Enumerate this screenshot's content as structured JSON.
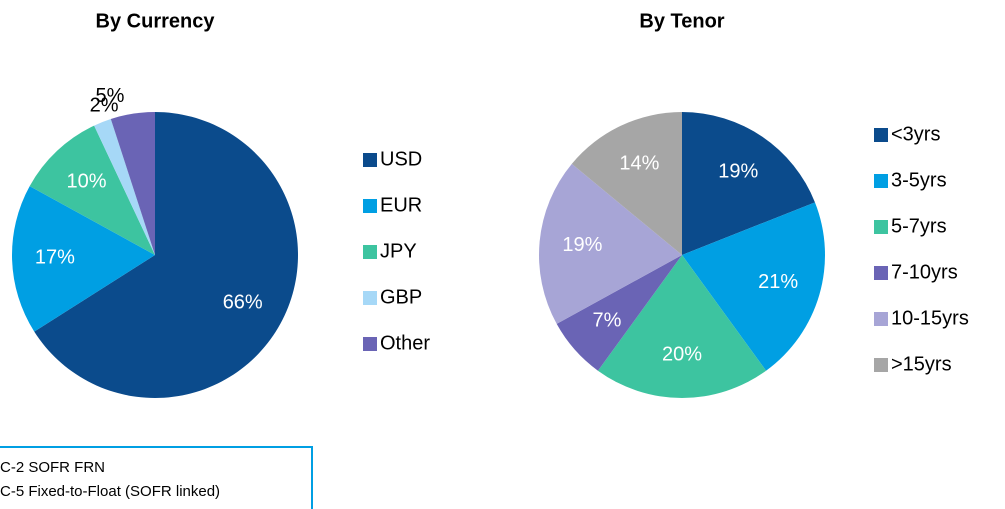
{
  "chart_data": [
    {
      "type": "pie",
      "title": "By Currency",
      "categories": [
        "USD",
        "EUR",
        "JPY",
        "GBP",
        "Other"
      ],
      "values": [
        66,
        17,
        10,
        2,
        5
      ],
      "value_labels": [
        "66%",
        "17%",
        "10%",
        "2%",
        "5%"
      ],
      "colors": [
        "#0b4b8c",
        "#009fe3",
        "#3dc4a0",
        "#a6d8f7",
        "#6a64b5"
      ]
    },
    {
      "type": "pie",
      "title": "By Tenor",
      "categories": [
        "<3yrs",
        "3-5yrs",
        "5-7yrs",
        "7-10yrs",
        "10-15yrs",
        ">15yrs"
      ],
      "values": [
        19,
        21,
        20,
        7,
        19,
        14
      ],
      "value_labels": [
        "19%",
        "21%",
        "20%",
        "7%",
        "19%",
        "14%"
      ],
      "colors": [
        "#0b4b8c",
        "#009fe3",
        "#3dc4a0",
        "#6a64b5",
        "#a7a5d6",
        "#a6a6a6"
      ]
    }
  ],
  "notes": [
    "C-2 SOFR FRN",
    "C-5 Fixed-to-Float (SOFR linked)"
  ]
}
